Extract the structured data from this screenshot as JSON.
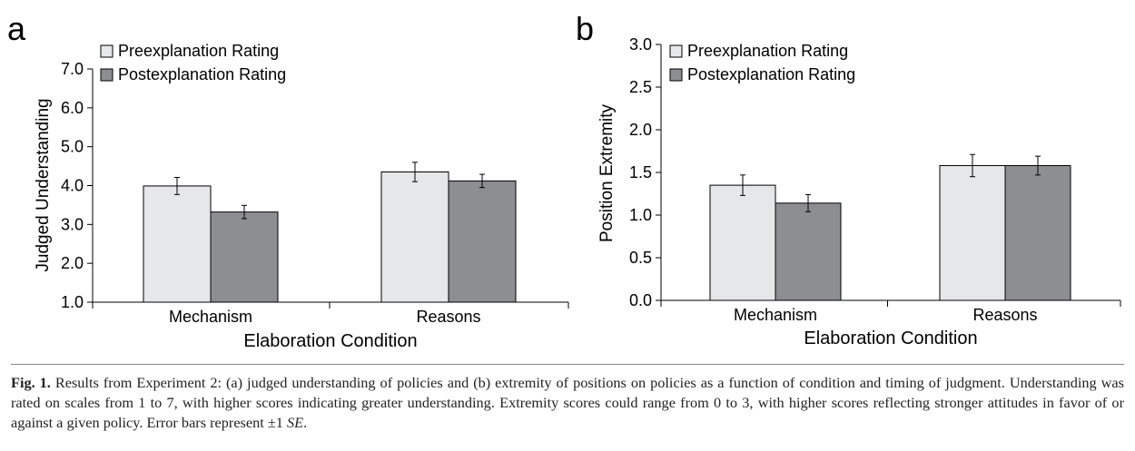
{
  "panels": [
    {
      "letter": "a",
      "ylabel": "Judged Understanding",
      "xlabel": "Elaboration Condition",
      "legend": [
        "Preexplanation Rating",
        "Postexplanation Rating"
      ]
    },
    {
      "letter": "b",
      "ylabel": "Position Extremity",
      "xlabel": "Elaboration Condition",
      "legend": [
        "Preexplanation Rating",
        "Postexplanation Rating"
      ]
    }
  ],
  "chart_data": [
    {
      "type": "bar",
      "categories": [
        "Mechanism",
        "Reasons"
      ],
      "series": [
        {
          "name": "Preexplanation Rating",
          "values": [
            3.99,
            4.35
          ],
          "errors": [
            0.22,
            0.25
          ],
          "color": "#e6e7e8"
        },
        {
          "name": "Postexplanation Rating",
          "values": [
            3.32,
            4.12
          ],
          "errors": [
            0.17,
            0.17
          ],
          "color": "#8c8e91"
        }
      ],
      "ylim": [
        1.0,
        7.0
      ],
      "yticks": [
        "1.0",
        "2.0",
        "3.0",
        "4.0",
        "5.0",
        "6.0",
        "7.0"
      ],
      "xlabel": "Elaboration Condition",
      "ylabel": "Judged Understanding",
      "legend": "top-left"
    },
    {
      "type": "bar",
      "categories": [
        "Mechanism",
        "Reasons"
      ],
      "series": [
        {
          "name": "Preexplanation Rating",
          "values": [
            1.35,
            1.58
          ],
          "errors": [
            0.12,
            0.13
          ],
          "color": "#e6e7e8"
        },
        {
          "name": "Postexplanation Rating",
          "values": [
            1.14,
            1.58
          ],
          "errors": [
            0.1,
            0.11
          ],
          "color": "#8c8e91"
        }
      ],
      "ylim": [
        0.0,
        3.0
      ],
      "yticks": [
        "0.0",
        "0.5",
        "1.0",
        "1.5",
        "2.0",
        "2.5",
        "3.0"
      ],
      "xlabel": "Elaboration Condition",
      "ylabel": "Position Extremity",
      "legend": "top-left"
    }
  ],
  "caption": {
    "fig_label": "Fig. 1.",
    "text": "Results from Experiment 2: (a) judged understanding of policies and (b) extremity of positions on policies as a function of condition and timing of judgment. Understanding was rated on scales from 1 to 7, with higher scores indicating greater understanding. Extremity scores could range from 0 to 3, with higher scores reflecting stronger attitudes in favor of or against a given policy. Error bars represent ±1",
    "se": "SE",
    "end": "."
  }
}
